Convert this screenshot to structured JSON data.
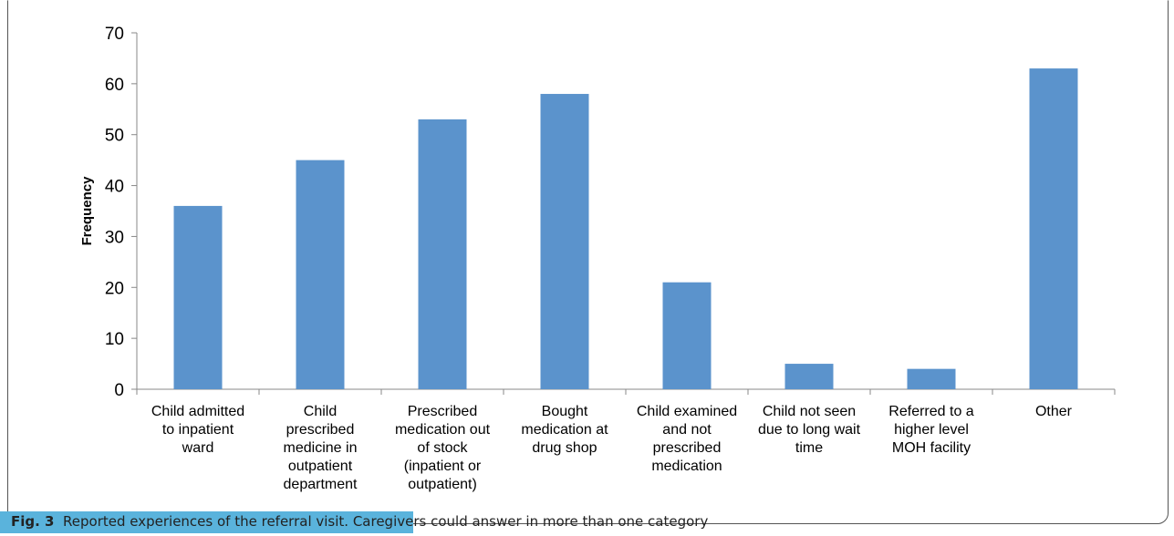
{
  "chart_data": {
    "type": "bar",
    "categories": [
      [
        "Child admitted",
        "to inpatient",
        "ward"
      ],
      [
        "Child",
        "prescribed",
        "medicine in",
        "outpatient",
        "department"
      ],
      [
        "Prescribed",
        "medication out",
        "of stock",
        "(inpatient or",
        "outpatient)"
      ],
      [
        "Bought",
        "medication at",
        "drug shop"
      ],
      [
        "Child examined",
        "and not",
        "prescribed",
        "medication"
      ],
      [
        "Child not seen",
        "due to long wait",
        "time"
      ],
      [
        "Referred to a",
        "higher level",
        "MOH facility"
      ],
      [
        "Other"
      ]
    ],
    "values": [
      36,
      45,
      53,
      58,
      21,
      5,
      4,
      63
    ],
    "ylabel": "Frequency",
    "ylim": [
      0,
      70
    ],
    "yticks": [
      0,
      10,
      20,
      30,
      40,
      50,
      60,
      70
    ],
    "bar_color": "#5b93cc",
    "grid": false
  },
  "caption": {
    "label": "Fig. 3",
    "text": "Reported experiences of the referral visit. Caregivers could answer in more than one category"
  }
}
